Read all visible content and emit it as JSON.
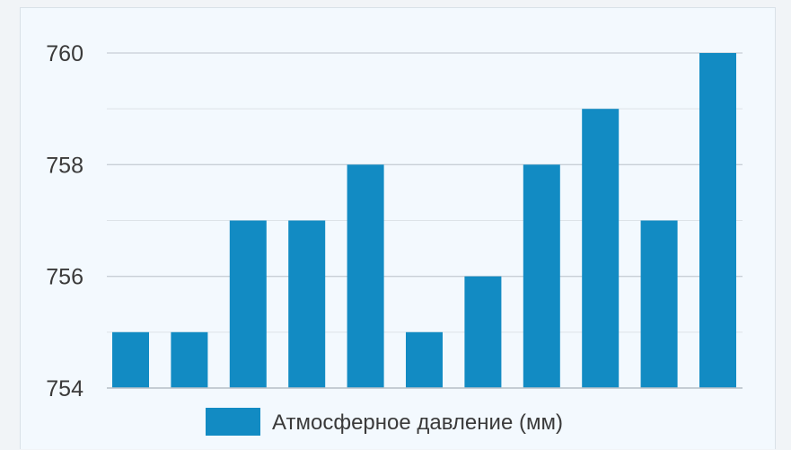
{
  "chart_data": {
    "type": "bar",
    "categories": [
      "",
      "",
      "",
      "",
      "",
      "",
      "",
      "",
      "",
      "",
      ""
    ],
    "series": [
      {
        "name": "Атмосферное давление (мм)",
        "values": [
          755,
          755,
          757,
          757,
          758,
          755,
          756,
          758,
          759,
          757,
          760
        ]
      }
    ],
    "title": "",
    "xlabel": "",
    "ylabel": "",
    "ylim": [
      754,
      760
    ],
    "yticks": [
      "754",
      "756",
      "758",
      "760"
    ],
    "minor_grid_step": 1,
    "grid": true,
    "legend": "bottom",
    "colors": {
      "bar": "#128bc3",
      "grid": "#c8cfd6",
      "axis": "#b9c2ca",
      "panel_bg": "#f3f9fe"
    }
  }
}
